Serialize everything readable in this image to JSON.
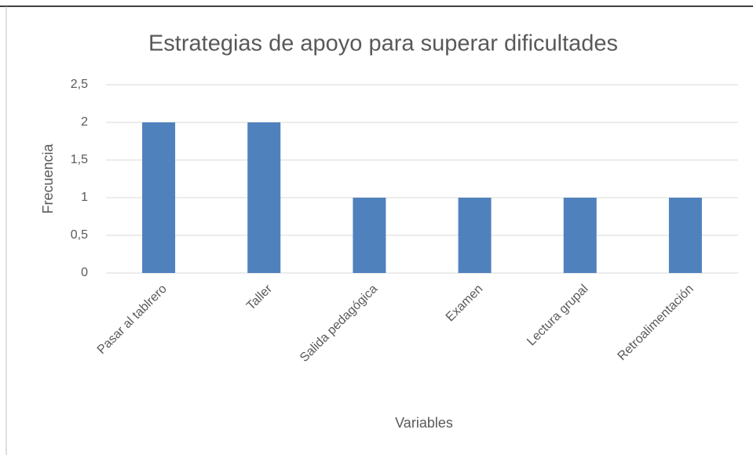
{
  "chart_data": {
    "type": "bar",
    "title": "Estrategias de apoyo para superar dificultades",
    "x_label": "Variables",
    "y_label": "Frecuencia",
    "categories": [
      "Pasar al tablrero",
      "Taller",
      "Salida pedagógica",
      "Examen",
      "Lectura grupal",
      "Retroalimentación"
    ],
    "values": [
      2,
      2,
      1,
      1,
      1,
      1
    ],
    "color": "#4f81bd",
    "ylim": [
      0,
      2.5
    ],
    "yticks": [
      0,
      {
        "value": 0.5,
        "label": "0,5"
      },
      1,
      {
        "value": 1.5,
        "label": "1,5"
      },
      2,
      {
        "value": 2.5,
        "label": "2,5"
      }
    ],
    "grid": true
  }
}
